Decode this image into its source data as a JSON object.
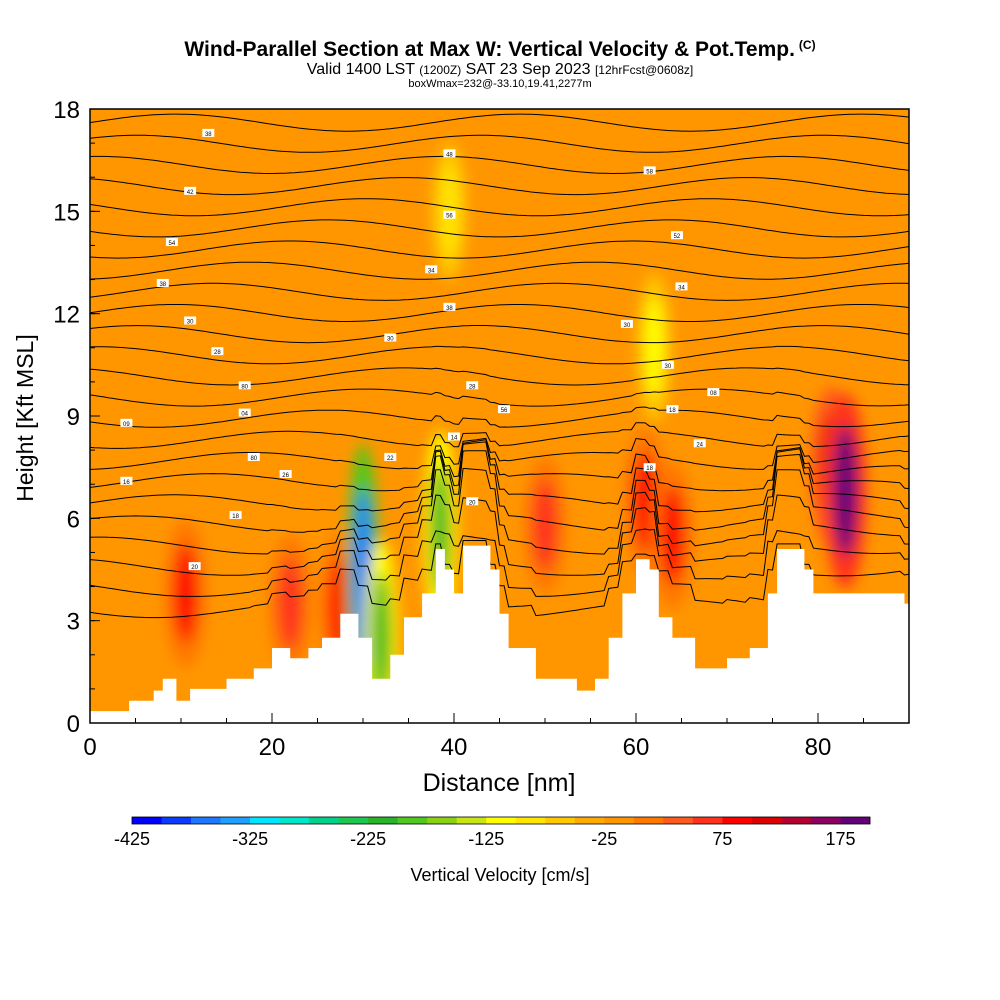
{
  "header": {
    "title": "Wind-Parallel Section at Max W: Vertical Velocity & Pot.Temp.",
    "copyright": "(C)",
    "valid_prefix": "Valid 1400 LST",
    "valid_utc": "(1200Z)",
    "valid_date": "SAT 23 Sep 2023",
    "forecast": "[12hrFcst@0608z]",
    "box_info": "boxWmax=232@-33.10,19.41,2277m"
  },
  "chart_data": {
    "type": "heatmap",
    "xlabel": "Distance [nm]",
    "ylabel": "Height [Kft MSL]",
    "xlim": [
      0,
      90
    ],
    "ylim": [
      0,
      18
    ],
    "x_ticks": [
      0,
      20,
      40,
      60,
      80
    ],
    "y_ticks": [
      0,
      3,
      6,
      9,
      12,
      15,
      18
    ],
    "background_value": -25,
    "colorbar": {
      "label": "Vertical Velocity [cm/s]",
      "tick_labels": [
        -425,
        -325,
        -225,
        -125,
        -25,
        75,
        175
      ],
      "min": -425,
      "max": 200,
      "step": 25,
      "colors": [
        "#0000ff",
        "#0a3cff",
        "#1e78ff",
        "#1ea0ff",
        "#00e6ff",
        "#00e6c8",
        "#00d28c",
        "#1ec850",
        "#28b428",
        "#50c81e",
        "#8cd214",
        "#c8e614",
        "#ffff00",
        "#ffe600",
        "#ffc800",
        "#ffaa00",
        "#ff9600",
        "#ff7800",
        "#ff5a1e",
        "#ff321e",
        "#ff0000",
        "#dc0000",
        "#b40032",
        "#8c0064",
        "#640078"
      ]
    },
    "updraft_cores": [
      {
        "x": 10.5,
        "y": 3.8,
        "value": 75
      },
      {
        "x": 22,
        "y": 3.5,
        "value": 50
      },
      {
        "x": 27.5,
        "y": 3.4,
        "value": 75
      },
      {
        "x": 50,
        "y": 5.8,
        "value": 50
      },
      {
        "x": 61,
        "y": 6.5,
        "value": 75
      },
      {
        "x": 64,
        "y": 5.5,
        "value": 75
      },
      {
        "x": 81.5,
        "y": 7.5,
        "value": 100
      },
      {
        "x": 83,
        "y": 6.8,
        "value": 175
      }
    ],
    "downdraft_bands": [
      {
        "x": 30,
        "y": 4.3,
        "value": -375
      },
      {
        "x": 38.5,
        "y": 5.7,
        "value": -225
      },
      {
        "x": 32,
        "y": 2.5,
        "value": -225
      },
      {
        "x": 62,
        "y": 11,
        "value": -125
      },
      {
        "x": 39.5,
        "y": 15,
        "value": -100
      }
    ],
    "terrain_kft": [
      [
        0,
        0.35
      ],
      [
        4.3,
        0.35
      ],
      [
        4.3,
        0.65
      ],
      [
        7,
        0.65
      ],
      [
        7,
        0.95
      ],
      [
        8,
        0.95
      ],
      [
        8,
        1.3
      ],
      [
        9.5,
        1.3
      ],
      [
        9.5,
        0.65
      ],
      [
        11,
        0.65
      ],
      [
        11,
        1.0
      ],
      [
        15,
        1.0
      ],
      [
        15,
        1.3
      ],
      [
        18,
        1.3
      ],
      [
        18,
        1.6
      ],
      [
        20,
        1.6
      ],
      [
        20,
        2.2
      ],
      [
        22,
        2.2
      ],
      [
        22,
        1.9
      ],
      [
        24,
        1.9
      ],
      [
        24,
        2.2
      ],
      [
        25.5,
        2.2
      ],
      [
        25.5,
        2.5
      ],
      [
        27.5,
        2.5
      ],
      [
        27.5,
        3.2
      ],
      [
        29.5,
        3.2
      ],
      [
        29.5,
        2.5
      ],
      [
        31,
        2.5
      ],
      [
        31,
        1.3
      ],
      [
        33,
        1.3
      ],
      [
        33,
        2.0
      ],
      [
        34.5,
        2.0
      ],
      [
        34.5,
        3.1
      ],
      [
        36.5,
        3.1
      ],
      [
        36.5,
        3.8
      ],
      [
        38,
        3.8
      ],
      [
        38,
        5.1
      ],
      [
        39,
        5.1
      ],
      [
        39,
        4.5
      ],
      [
        40,
        4.5
      ],
      [
        40,
        3.8
      ],
      [
        41,
        3.8
      ],
      [
        41,
        5.2
      ],
      [
        44,
        5.2
      ],
      [
        44,
        4.5
      ],
      [
        45,
        4.5
      ],
      [
        45,
        3.2
      ],
      [
        46,
        3.2
      ],
      [
        46,
        2.2
      ],
      [
        49,
        2.2
      ],
      [
        49,
        1.3
      ],
      [
        53.5,
        1.3
      ],
      [
        53.5,
        0.95
      ],
      [
        55.5,
        0.95
      ],
      [
        55.5,
        1.3
      ],
      [
        57,
        1.3
      ],
      [
        57,
        2.5
      ],
      [
        58.5,
        2.5
      ],
      [
        58.5,
        3.8
      ],
      [
        60,
        3.8
      ],
      [
        60,
        4.8
      ],
      [
        61.5,
        4.8
      ],
      [
        61.5,
        4.5
      ],
      [
        62.5,
        4.5
      ],
      [
        62.5,
        3.1
      ],
      [
        64,
        3.1
      ],
      [
        64,
        2.5
      ],
      [
        66.5,
        2.5
      ],
      [
        66.5,
        1.6
      ],
      [
        70,
        1.6
      ],
      [
        70,
        1.9
      ],
      [
        72.5,
        1.9
      ],
      [
        72.5,
        2.2
      ],
      [
        74.5,
        2.2
      ],
      [
        74.5,
        3.8
      ],
      [
        75.5,
        3.8
      ],
      [
        75.5,
        5.1
      ],
      [
        78.5,
        5.1
      ],
      [
        78.5,
        4.5
      ],
      [
        79.5,
        4.5
      ],
      [
        79.5,
        3.8
      ],
      [
        86,
        3.8
      ],
      [
        86,
        3.8
      ],
      [
        89.5,
        3.8
      ],
      [
        89.5,
        3.5
      ],
      [
        90,
        3.5
      ]
    ],
    "theta_contours": {
      "count": 24,
      "top_kft": 17.6,
      "spacing_kft": 0.62,
      "labels": [
        {
          "x": 13,
          "y": 17.3,
          "text": "38"
        },
        {
          "x": 39.5,
          "y": 16.7,
          "text": "48"
        },
        {
          "x": 61.5,
          "y": 16.2,
          "text": "58"
        },
        {
          "x": 11,
          "y": 15.6,
          "text": "42"
        },
        {
          "x": 39.5,
          "y": 14.9,
          "text": "56"
        },
        {
          "x": 9,
          "y": 14.1,
          "text": "54"
        },
        {
          "x": 64.5,
          "y": 14.3,
          "text": "52"
        },
        {
          "x": 37.5,
          "y": 13.3,
          "text": "34"
        },
        {
          "x": 8,
          "y": 12.9,
          "text": "38"
        },
        {
          "x": 65,
          "y": 12.8,
          "text": "34"
        },
        {
          "x": 11,
          "y": 11.8,
          "text": "30"
        },
        {
          "x": 39.5,
          "y": 12.2,
          "text": "38"
        },
        {
          "x": 59,
          "y": 11.7,
          "text": "30"
        },
        {
          "x": 33,
          "y": 11.3,
          "text": "30"
        },
        {
          "x": 14,
          "y": 10.9,
          "text": "28"
        },
        {
          "x": 63.5,
          "y": 10.5,
          "text": "30"
        },
        {
          "x": 17,
          "y": 9.9,
          "text": "80"
        },
        {
          "x": 42,
          "y": 9.9,
          "text": "28"
        },
        {
          "x": 68.5,
          "y": 9.7,
          "text": "08"
        },
        {
          "x": 17,
          "y": 9.1,
          "text": "04"
        },
        {
          "x": 45.5,
          "y": 9.2,
          "text": "56"
        },
        {
          "x": 64,
          "y": 9.2,
          "text": "18"
        },
        {
          "x": 4,
          "y": 8.8,
          "text": "09"
        },
        {
          "x": 40,
          "y": 8.4,
          "text": "14"
        },
        {
          "x": 67,
          "y": 8.2,
          "text": "24"
        },
        {
          "x": 18,
          "y": 7.8,
          "text": "80"
        },
        {
          "x": 33,
          "y": 7.8,
          "text": "22"
        },
        {
          "x": 61.5,
          "y": 7.5,
          "text": "18"
        },
        {
          "x": 21.5,
          "y": 7.3,
          "text": "26"
        },
        {
          "x": 4,
          "y": 7.1,
          "text": "16"
        },
        {
          "x": 42,
          "y": 6.5,
          "text": "20"
        },
        {
          "x": 16,
          "y": 6.1,
          "text": "18"
        },
        {
          "x": 11.5,
          "y": 4.6,
          "text": "20"
        }
      ]
    }
  }
}
